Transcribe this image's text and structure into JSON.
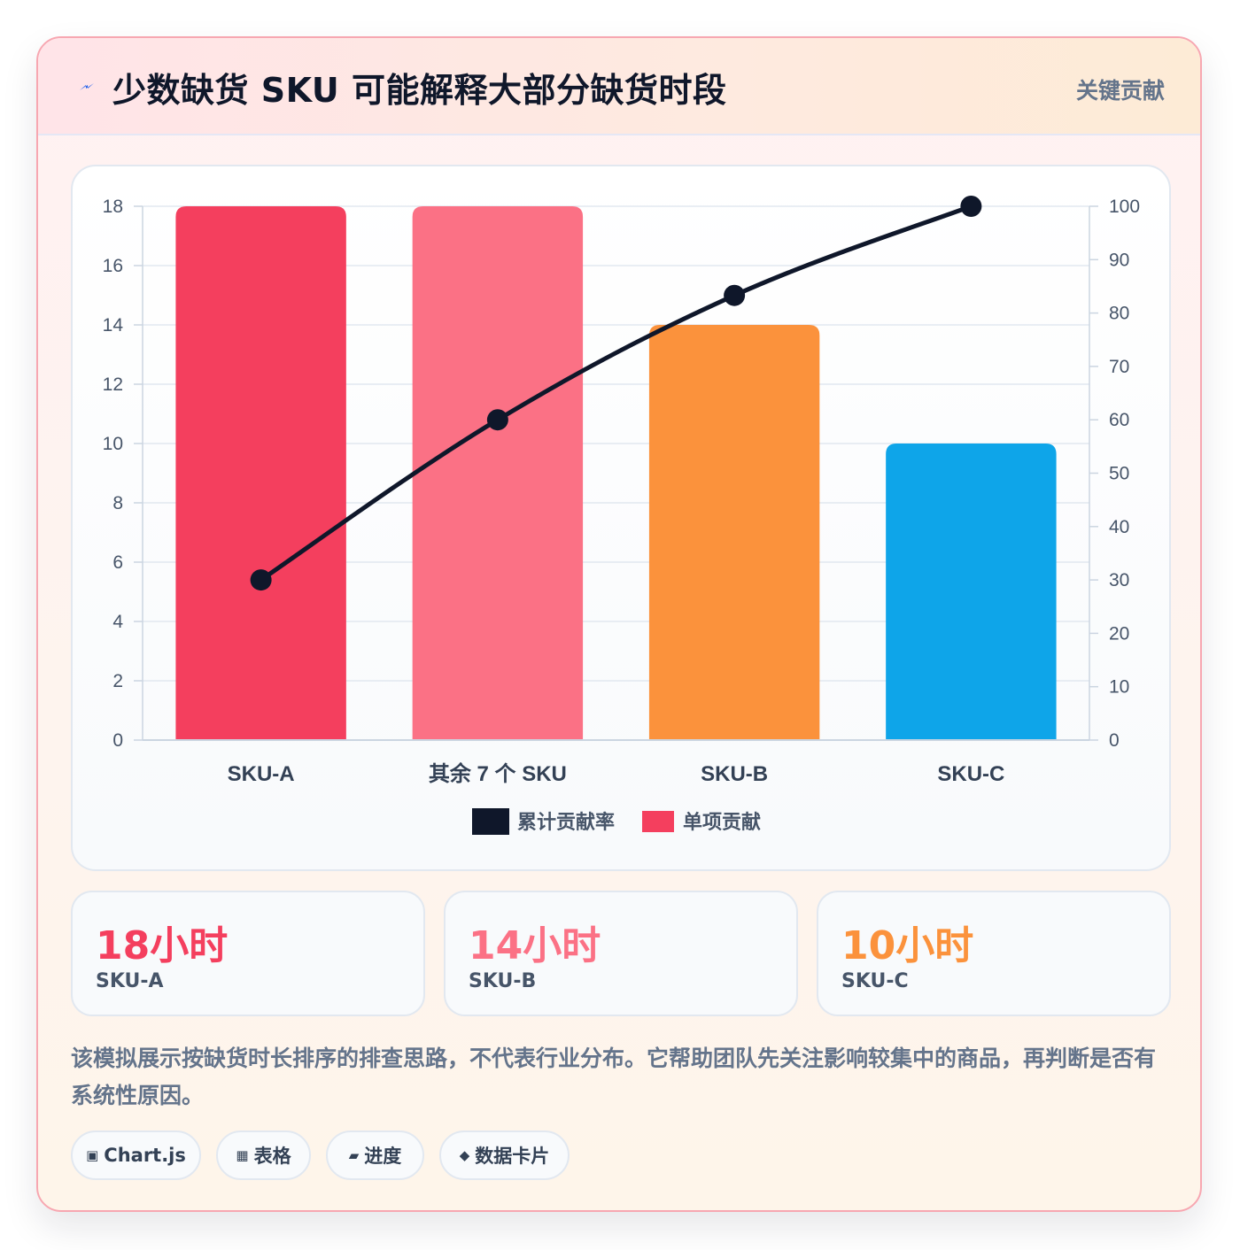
{
  "header": {
    "icon": "lightning-bolt-icon",
    "title": "少数缺货 SKU 可能解释大部分缺货时段",
    "badge": "关键贡献"
  },
  "colors": {
    "red": "#f43f5e",
    "pink": "#fb7185",
    "orange": "#fb923c",
    "blue": "#0ea5e9",
    "line": "#0f172a"
  },
  "chart_data": {
    "type": "bar",
    "categories": [
      "SKU-A",
      "其余 7 个 SKU",
      "SKU-B",
      "SKU-C"
    ],
    "series": [
      {
        "name": "单项贡献",
        "type": "bar",
        "axis": "left",
        "values": [
          18,
          18,
          14,
          10
        ],
        "colors": [
          "#f43f5e",
          "#fb7185",
          "#fb923c",
          "#0ea5e9"
        ]
      },
      {
        "name": "累计贡献率",
        "type": "line",
        "axis": "right",
        "values": [
          30,
          60,
          83.3,
          100
        ],
        "color": "#0f172a"
      }
    ],
    "y_left": {
      "min": 0,
      "max": 18,
      "ticks": [
        "0",
        "2",
        "4",
        "6",
        "8",
        "10",
        "12",
        "14",
        "16",
        "18"
      ]
    },
    "y_right": {
      "min": 0,
      "max": 100,
      "ticks": [
        "0",
        "10",
        "20",
        "30",
        "40",
        "50",
        "60",
        "70",
        "80",
        "90",
        "100"
      ]
    },
    "legend": [
      "累计贡献率",
      "单项贡献"
    ],
    "legend_position": "bottom",
    "grid": true
  },
  "stats": [
    {
      "value": "18小时",
      "label": "SKU-A",
      "color": "#f43f5e"
    },
    {
      "value": "14小时",
      "label": "SKU-B",
      "color": "#fb7185"
    },
    {
      "value": "10小时",
      "label": "SKU-C",
      "color": "#fb923c"
    }
  ],
  "note": "该模拟展示按缺货时长排序的排查思路，不代表行业分布。它帮助团队先关注影响较集中的商品，再判断是否有系统性原因。",
  "tags": [
    {
      "icon": "chart-icon",
      "glyph": "▣",
      "label": "Chart.js"
    },
    {
      "icon": "table-icon",
      "glyph": "▦",
      "label": "表格"
    },
    {
      "icon": "progress-icon",
      "glyph": "▰",
      "label": "进度"
    },
    {
      "icon": "card-icon",
      "glyph": "◆",
      "label": "数据卡片"
    }
  ]
}
